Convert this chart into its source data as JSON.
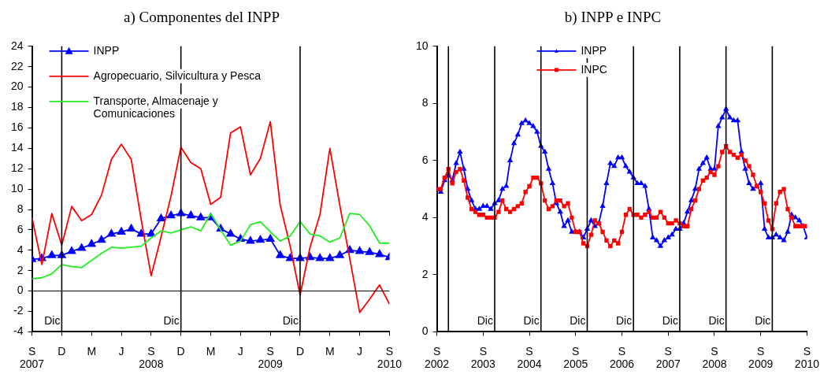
{
  "chart_data": [
    {
      "type": "line",
      "title": "a) Componentes del INPP",
      "legend": "top left",
      "grid": false,
      "x": [
        "2007-09",
        "2007-10",
        "2007-11",
        "2007-12",
        "2008-01",
        "2008-02",
        "2008-03",
        "2008-04",
        "2008-05",
        "2008-06",
        "2008-07",
        "2008-08",
        "2008-09",
        "2008-10",
        "2008-11",
        "2008-12",
        "2009-01",
        "2009-02",
        "2009-03",
        "2009-04",
        "2009-05",
        "2009-06",
        "2009-07",
        "2009-08",
        "2009-09",
        "2009-10",
        "2009-11",
        "2009-12",
        "2010-01",
        "2010-02",
        "2010-03",
        "2010-04",
        "2010-05",
        "2010-06",
        "2010-07",
        "2010-08",
        "2010-09"
      ],
      "series": [
        {
          "name": "INPP",
          "color": "#0000ff",
          "marker": "triangle",
          "values": [
            3.1,
            3.2,
            3.5,
            3.5,
            3.9,
            4.2,
            4.6,
            5.0,
            5.6,
            5.8,
            6.1,
            5.6,
            5.6,
            7.1,
            7.4,
            7.6,
            7.4,
            7.2,
            7.2,
            6.1,
            5.6,
            5.1,
            4.9,
            5.0,
            5.1,
            3.5,
            3.2,
            3.2,
            3.3,
            3.2,
            3.2,
            3.5,
            4.0,
            3.9,
            3.8,
            3.6,
            3.3
          ]
        },
        {
          "name": "Agropecuario, Silvicultura y Pesca",
          "color": "#ff0000",
          "marker": "none",
          "values": [
            7.2,
            2.6,
            7.6,
            4.5,
            8.3,
            6.9,
            7.5,
            9.4,
            12.9,
            14.4,
            12.9,
            7.0,
            1.5,
            5.3,
            9.3,
            14.1,
            12.6,
            12.0,
            8.5,
            9.2,
            15.5,
            16.1,
            11.4,
            13.0,
            16.6,
            8.4,
            4.4,
            -0.4,
            4.3,
            7.5,
            14.0,
            8.4,
            3.2,
            -2.1,
            -0.8,
            0.6,
            -1.3
          ]
        },
        {
          "name": "Transporte, Almacenaje y Comunicaciones",
          "color": "#22ee22",
          "marker": "none",
          "values": [
            1.2,
            1.3,
            1.7,
            2.6,
            2.4,
            2.3,
            3.0,
            3.7,
            4.3,
            4.2,
            4.3,
            4.4,
            5.2,
            5.9,
            5.7,
            6.0,
            6.3,
            5.9,
            7.6,
            6.0,
            4.5,
            4.9,
            6.5,
            6.8,
            5.8,
            4.9,
            5.4,
            6.8,
            5.6,
            5.4,
            4.8,
            5.2,
            7.6,
            7.5,
            6.4,
            4.7,
            4.7
          ]
        }
      ],
      "xlim": [
        "2007-09",
        "2010-09"
      ],
      "xticks": [
        {
          "value": "2007-09",
          "label": "S 2007"
        },
        {
          "value": "2007-12",
          "label": "D"
        },
        {
          "value": "2008-03",
          "label": "M"
        },
        {
          "value": "2008-06",
          "label": "J"
        },
        {
          "value": "2008-09",
          "label": "S 2008"
        },
        {
          "value": "2008-12",
          "label": "D"
        },
        {
          "value": "2009-03",
          "label": "M"
        },
        {
          "value": "2009-06",
          "label": "J"
        },
        {
          "value": "2009-09",
          "label": "S 2009"
        },
        {
          "value": "2009-12",
          "label": "D"
        },
        {
          "value": "2010-03",
          "label": "M"
        },
        {
          "value": "2010-06",
          "label": "J"
        },
        {
          "value": "2010-09",
          "label": "S 2010"
        }
      ],
      "ylim": [
        -4,
        24
      ],
      "yticks": [
        -4,
        -2,
        0,
        2,
        4,
        6,
        8,
        10,
        12,
        14,
        16,
        18,
        20,
        22,
        24
      ],
      "ref_lines": [
        {
          "axis": "y",
          "value": 0,
          "label": null
        },
        {
          "axis": "x",
          "value": "2007-12",
          "label": "Dic"
        },
        {
          "axis": "x",
          "value": "2008-12",
          "label": "Dic"
        },
        {
          "axis": "x",
          "value": "2009-12",
          "label": "Dic"
        }
      ]
    },
    {
      "type": "line",
      "title": "b) INPP e INPC",
      "legend": "top",
      "grid": false,
      "x": [
        "2002-09",
        "2002-10",
        "2002-11",
        "2002-12",
        "2003-01",
        "2003-02",
        "2003-03",
        "2003-04",
        "2003-05",
        "2003-06",
        "2003-07",
        "2003-08",
        "2003-09",
        "2003-10",
        "2003-11",
        "2003-12",
        "2004-01",
        "2004-02",
        "2004-03",
        "2004-04",
        "2004-05",
        "2004-06",
        "2004-07",
        "2004-08",
        "2004-09",
        "2004-10",
        "2004-11",
        "2004-12",
        "2005-01",
        "2005-02",
        "2005-03",
        "2005-04",
        "2005-05",
        "2005-06",
        "2005-07",
        "2005-08",
        "2005-09",
        "2005-10",
        "2005-11",
        "2005-12",
        "2006-01",
        "2006-02",
        "2006-03",
        "2006-04",
        "2006-05",
        "2006-06",
        "2006-07",
        "2006-08",
        "2006-09",
        "2006-10",
        "2006-11",
        "2006-12",
        "2007-01",
        "2007-02",
        "2007-03",
        "2007-04",
        "2007-05",
        "2007-06",
        "2007-07",
        "2007-08",
        "2007-09",
        "2007-10",
        "2007-11",
        "2007-12",
        "2008-01",
        "2008-02",
        "2008-03",
        "2008-04",
        "2008-05",
        "2008-06",
        "2008-07",
        "2008-08",
        "2008-09",
        "2008-10",
        "2008-11",
        "2008-12",
        "2009-01",
        "2009-02",
        "2009-03",
        "2009-04",
        "2009-05",
        "2009-06",
        "2009-07",
        "2009-08",
        "2009-09",
        "2009-10",
        "2009-11",
        "2009-12",
        "2010-01",
        "2010-02",
        "2010-03",
        "2010-04",
        "2010-05",
        "2010-06",
        "2010-07",
        "2010-08",
        "2010-09"
      ],
      "series": [
        {
          "name": "INPP",
          "color": "#0000ff",
          "marker": "triangle",
          "values": [
            5.0,
            4.9,
            5.3,
            5.5,
            5.3,
            5.9,
            6.3,
            5.7,
            5.0,
            4.6,
            4.3,
            4.3,
            4.4,
            4.4,
            4.3,
            4.5,
            4.6,
            5.0,
            5.1,
            6.0,
            6.6,
            6.9,
            7.3,
            7.4,
            7.3,
            7.2,
            7.0,
            6.5,
            6.3,
            5.7,
            5.2,
            4.5,
            4.2,
            3.7,
            3.9,
            3.5,
            3.5,
            3.5,
            3.3,
            3.6,
            3.9,
            3.7,
            3.8,
            4.4,
            5.2,
            5.9,
            5.8,
            6.1,
            6.1,
            5.8,
            5.6,
            5.4,
            5.2,
            5.2,
            5.1,
            4.3,
            3.3,
            3.2,
            3.0,
            3.2,
            3.3,
            3.4,
            3.6,
            3.6,
            3.8,
            4.2,
            4.6,
            5.0,
            5.7,
            5.9,
            6.1,
            5.7,
            5.7,
            7.2,
            7.5,
            7.8,
            7.5,
            7.4,
            7.4,
            6.3,
            5.7,
            5.2,
            5.0,
            5.1,
            5.2,
            3.6,
            3.3,
            3.3,
            3.4,
            3.3,
            3.2,
            3.5,
            4.1,
            4.0,
            3.9,
            3.7,
            3.3
          ]
        },
        {
          "name": "INPC",
          "color": "#ff0000",
          "marker": "square",
          "values": [
            5.0,
            5.0,
            5.4,
            5.7,
            5.2,
            5.6,
            5.7,
            5.3,
            4.7,
            4.3,
            4.2,
            4.1,
            4.1,
            4.0,
            4.0,
            4.0,
            4.2,
            4.6,
            4.3,
            4.2,
            4.3,
            4.4,
            4.5,
            4.9,
            5.1,
            5.4,
            5.4,
            5.2,
            4.6,
            4.3,
            4.4,
            4.6,
            4.6,
            4.4,
            4.5,
            4.0,
            3.5,
            3.5,
            3.1,
            3.0,
            3.4,
            3.9,
            3.8,
            3.5,
            3.2,
            3.0,
            3.2,
            3.1,
            3.5,
            4.1,
            4.3,
            4.1,
            4.1,
            4.0,
            4.1,
            4.2,
            4.0,
            4.0,
            4.2,
            4.0,
            3.8,
            3.8,
            3.9,
            3.8,
            3.7,
            3.7,
            4.3,
            4.6,
            5.0,
            5.3,
            5.4,
            5.6,
            5.5,
            5.8,
            6.3,
            6.5,
            6.3,
            6.2,
            6.1,
            6.2,
            6.0,
            5.8,
            5.5,
            5.1,
            4.9,
            4.5,
            3.9,
            3.6,
            4.5,
            4.9,
            5.0,
            4.3,
            4.0,
            3.7,
            3.7,
            3.7,
            3.7
          ]
        }
      ],
      "xlim": [
        "2002-09",
        "2010-09"
      ],
      "xticks": [
        {
          "value": "2002-09",
          "label": "S 2002"
        },
        {
          "value": "2003-09",
          "label": "S 2003"
        },
        {
          "value": "2004-09",
          "label": "S 2004"
        },
        {
          "value": "2005-09",
          "label": "S 2005"
        },
        {
          "value": "2006-09",
          "label": "S 2006"
        },
        {
          "value": "2007-09",
          "label": "S 2007"
        },
        {
          "value": "2008-09",
          "label": "S 2008"
        },
        {
          "value": "2009-09",
          "label": "S 2009"
        },
        {
          "value": "2010-09",
          "label": "S 2010"
        }
      ],
      "ylim": [
        0,
        10
      ],
      "yticks": [
        0,
        2,
        4,
        6,
        8,
        10
      ],
      "ref_lines": [
        {
          "axis": "x",
          "value": "2002-12",
          "label": null
        },
        {
          "axis": "x",
          "value": "2003-12",
          "label": "Dic"
        },
        {
          "axis": "x",
          "value": "2004-12",
          "label": "Dic"
        },
        {
          "axis": "x",
          "value": "2005-12",
          "label": "Dic"
        },
        {
          "axis": "x",
          "value": "2006-12",
          "label": "Dic"
        },
        {
          "axis": "x",
          "value": "2007-12",
          "label": "Dic"
        },
        {
          "axis": "x",
          "value": "2008-12",
          "label": "Dic"
        },
        {
          "axis": "x",
          "value": "2009-12",
          "label": "Dic"
        }
      ]
    }
  ]
}
